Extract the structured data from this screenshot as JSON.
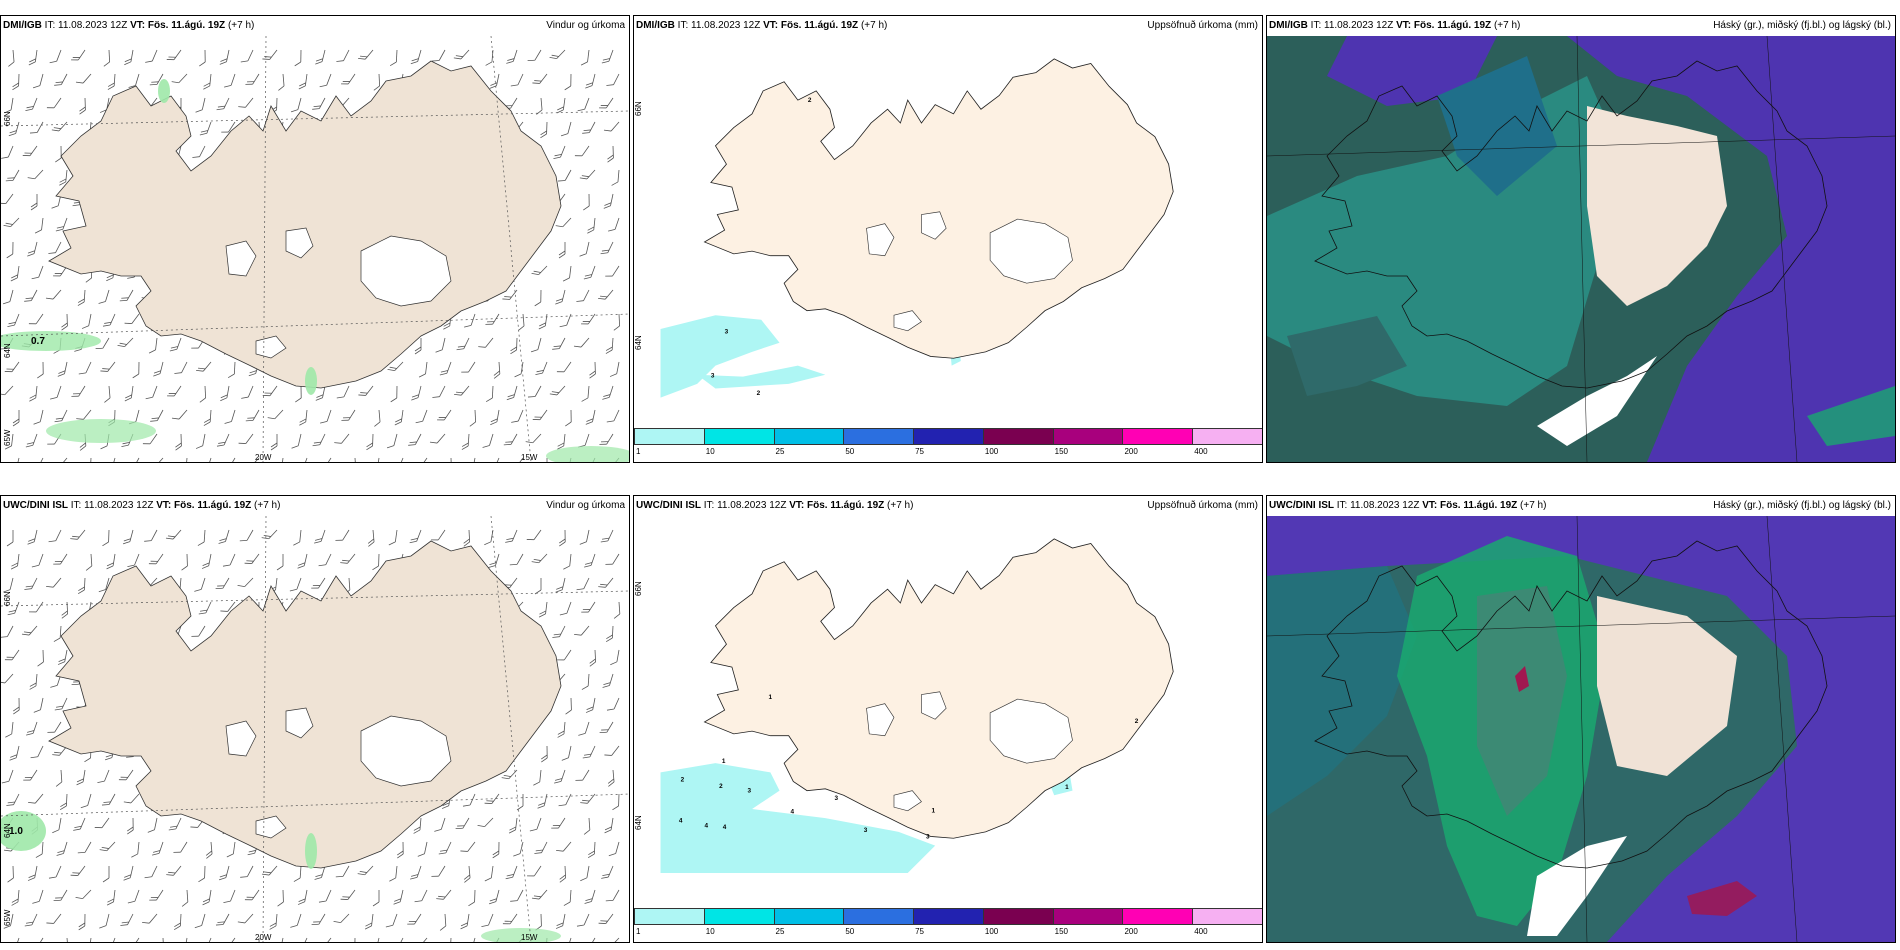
{
  "rows": [
    {
      "model": "DMI/IGB",
      "panels": [
        {
          "model": "DMI/IGB",
          "it": "IT: 11.08.2023 12Z",
          "vt_label": "VT:",
          "vt_value": "Fös. 11.ágú. 19Z",
          "lead": "(+7 h)",
          "title": "Vindur og úrkoma",
          "type": "wind",
          "lat_ticks": [
            "66N",
            "64N",
            "65W"
          ],
          "lon_ticks": [
            "20W",
            "15W"
          ],
          "max_label": "0.7"
        },
        {
          "model": "DMI/IGB",
          "it": "IT: 11.08.2023 12Z",
          "vt_label": "VT:",
          "vt_value": "Fös. 11.ágú. 19Z",
          "lead": "(+7 h)",
          "title": "Uppsöfnuð úrkoma (mm)",
          "type": "precip",
          "lat_ticks": [
            "66N",
            "64N"
          ],
          "precip_labels": [
            "2",
            "3",
            "3",
            "2"
          ]
        },
        {
          "model": "DMI/IGB",
          "it": "IT: 11.08.2023 12Z",
          "vt_label": "VT:",
          "vt_value": "Fös. 11.ágú. 19Z",
          "lead": "(+7 h)",
          "title": "Háský (gr.), miðský (fj.bl.) og lágský (bl.)",
          "type": "cloud"
        }
      ]
    },
    {
      "model": "UWC/DINI ISL",
      "panels": [
        {
          "model": "UWC/DINI ISL",
          "it": "IT: 11.08.2023 12Z",
          "vt_label": "VT:",
          "vt_value": "Fös. 11.ágú. 19Z",
          "lead": "(+7 h)",
          "title": "Vindur og úrkoma",
          "type": "wind",
          "lat_ticks": [
            "66N",
            "64N",
            "65W"
          ],
          "lon_ticks": [
            "20W",
            "15W"
          ],
          "max_label": "1.0"
        },
        {
          "model": "UWC/DINI ISL",
          "it": "IT: 11.08.2023 12Z",
          "vt_label": "VT:",
          "vt_value": "Fös. 11.ágú. 19Z",
          "lead": "(+7 h)",
          "title": "Uppsöfnuð úrkoma (mm)",
          "type": "precip",
          "lat_ticks": [
            "66N",
            "64N"
          ],
          "precip_labels": [
            "1",
            "1",
            "2",
            "2",
            "3",
            "1",
            "4",
            "4",
            "4",
            "4",
            "3",
            "3",
            "2",
            "1",
            "3"
          ]
        },
        {
          "model": "UWC/DINI ISL",
          "it": "IT: 11.08.2023 12Z",
          "vt_label": "VT:",
          "vt_value": "Fös. 11.ágú. 19Z",
          "lead": "(+7 h)",
          "title": "Háský (gr.), miðský (fj.bl.) og lágský (bl.)",
          "type": "cloud"
        }
      ]
    }
  ],
  "colorbar": {
    "labels": [
      "1",
      "10",
      "25",
      "50",
      "75",
      "100",
      "150",
      "200",
      "400"
    ],
    "colors": [
      "#aef6f4",
      "#00e5e5",
      "#00bfe6",
      "#2b6fe0",
      "#2222b0",
      "#7a0050",
      "#a8007d",
      "#ff00b4",
      "#f6b0f2"
    ]
  },
  "colors": {
    "land_wind": "#efe3d5",
    "land_precip": "#fdf1e3",
    "ocean_cloud": "#2c5f5a",
    "low_cloud": "#4e34b0",
    "mid_cloud": "#2a8a80",
    "high_cloud": "#1aa870",
    "precip_light": "#aef6f4",
    "rain_green": "#9ee8a8"
  }
}
